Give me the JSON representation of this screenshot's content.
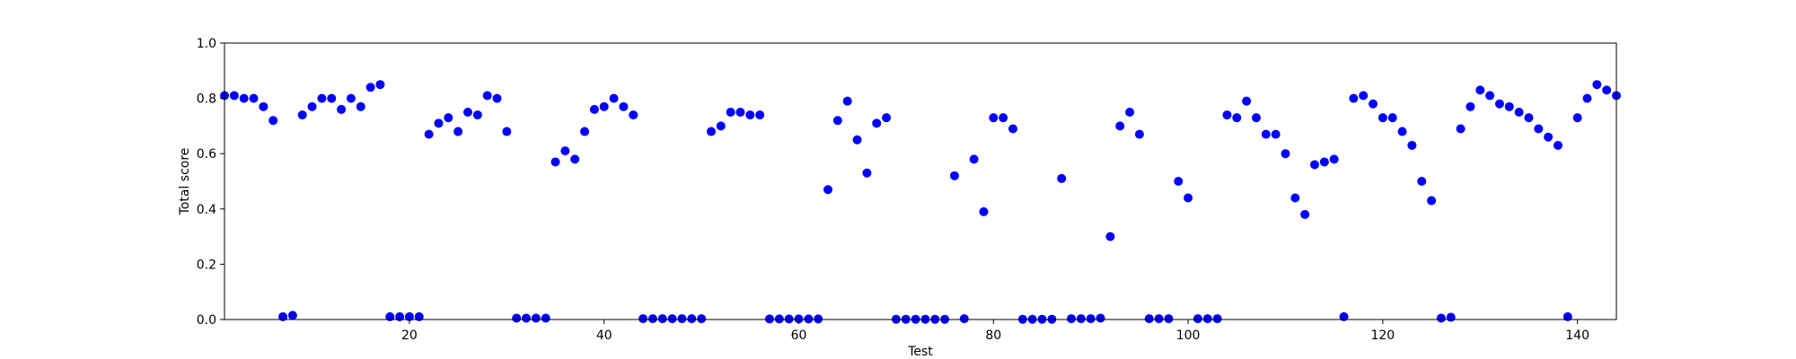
{
  "chart_data": {
    "type": "scatter",
    "xlabel": "Test",
    "ylabel": "Total score",
    "xlim": [
      1,
      144
    ],
    "ylim": [
      0.0,
      1.0
    ],
    "xticks": [
      20,
      40,
      60,
      80,
      100,
      120,
      140
    ],
    "yticks": [
      "0.0",
      "0.2",
      "0.4",
      "0.6",
      "0.8",
      "1.0"
    ],
    "grid": false,
    "point_color": "#0000ff",
    "x": [
      1,
      2,
      3,
      4,
      5,
      6,
      7,
      8,
      9,
      10,
      11,
      12,
      13,
      14,
      15,
      16,
      17,
      18,
      19,
      20,
      21,
      22,
      23,
      24,
      25,
      26,
      27,
      28,
      29,
      30,
      31,
      32,
      33,
      34,
      35,
      36,
      37,
      38,
      39,
      40,
      41,
      42,
      43,
      44,
      45,
      46,
      47,
      48,
      49,
      50,
      51,
      52,
      53,
      54,
      55,
      56,
      57,
      58,
      59,
      60,
      61,
      62,
      63,
      64,
      65,
      66,
      67,
      68,
      69,
      70,
      71,
      72,
      73,
      74,
      75,
      76,
      77,
      78,
      79,
      80,
      81,
      82,
      83,
      84,
      85,
      86,
      87,
      88,
      89,
      90,
      91,
      92,
      93,
      94,
      95,
      96,
      97,
      98,
      99,
      100,
      101,
      102,
      103,
      104,
      105,
      106,
      107,
      108,
      109,
      110,
      111,
      112,
      113,
      114,
      115,
      116,
      117,
      118,
      119,
      120,
      121,
      122,
      123,
      124,
      125,
      126,
      127,
      128,
      129,
      130,
      131,
      132,
      133,
      134,
      135,
      136,
      137,
      138,
      139,
      140,
      141,
      142,
      143,
      144
    ],
    "y": [
      0.81,
      0.81,
      0.8,
      0.8,
      0.77,
      0.72,
      0.01,
      0.015,
      0.74,
      0.77,
      0.8,
      0.8,
      0.76,
      0.8,
      0.77,
      0.84,
      0.85,
      0.01,
      0.01,
      0.01,
      0.01,
      0.67,
      0.71,
      0.73,
      0.68,
      0.75,
      0.74,
      0.81,
      0.8,
      0.68,
      0.005,
      0.005,
      0.005,
      0.005,
      0.57,
      0.61,
      0.58,
      0.68,
      0.76,
      0.77,
      0.8,
      0.77,
      0.74,
      0.003,
      0.003,
      0.003,
      0.003,
      0.003,
      0.003,
      0.003,
      0.68,
      0.7,
      0.75,
      0.75,
      0.74,
      0.74,
      0.002,
      0.002,
      0.002,
      0.002,
      0.002,
      0.002,
      0.47,
      0.72,
      0.79,
      0.65,
      0.53,
      0.71,
      0.73,
      0.001,
      0.001,
      0.001,
      0.001,
      0.001,
      0.001,
      0.52,
      0.003,
      0.58,
      0.39,
      0.73,
      0.73,
      0.69,
      0.001,
      0.001,
      0.001,
      0.001,
      0.51,
      0.003,
      0.003,
      0.003,
      0.005,
      0.3,
      0.7,
      0.75,
      0.67,
      0.003,
      0.003,
      0.003,
      0.5,
      0.44,
      0.003,
      0.003,
      0.003,
      0.74,
      0.73,
      0.79,
      0.73,
      0.67,
      0.67,
      0.6,
      0.44,
      0.38,
      0.56,
      0.57,
      0.58,
      0.01,
      0.8,
      0.81,
      0.78,
      0.73,
      0.73,
      0.68,
      0.63,
      0.5,
      0.43,
      0.005,
      0.008,
      0.69,
      0.77,
      0.83,
      0.81,
      0.78,
      0.77,
      0.75,
      0.73,
      0.69,
      0.66,
      0.63,
      0.01,
      0.73,
      0.8,
      0.85,
      0.83,
      0.81
    ]
  }
}
